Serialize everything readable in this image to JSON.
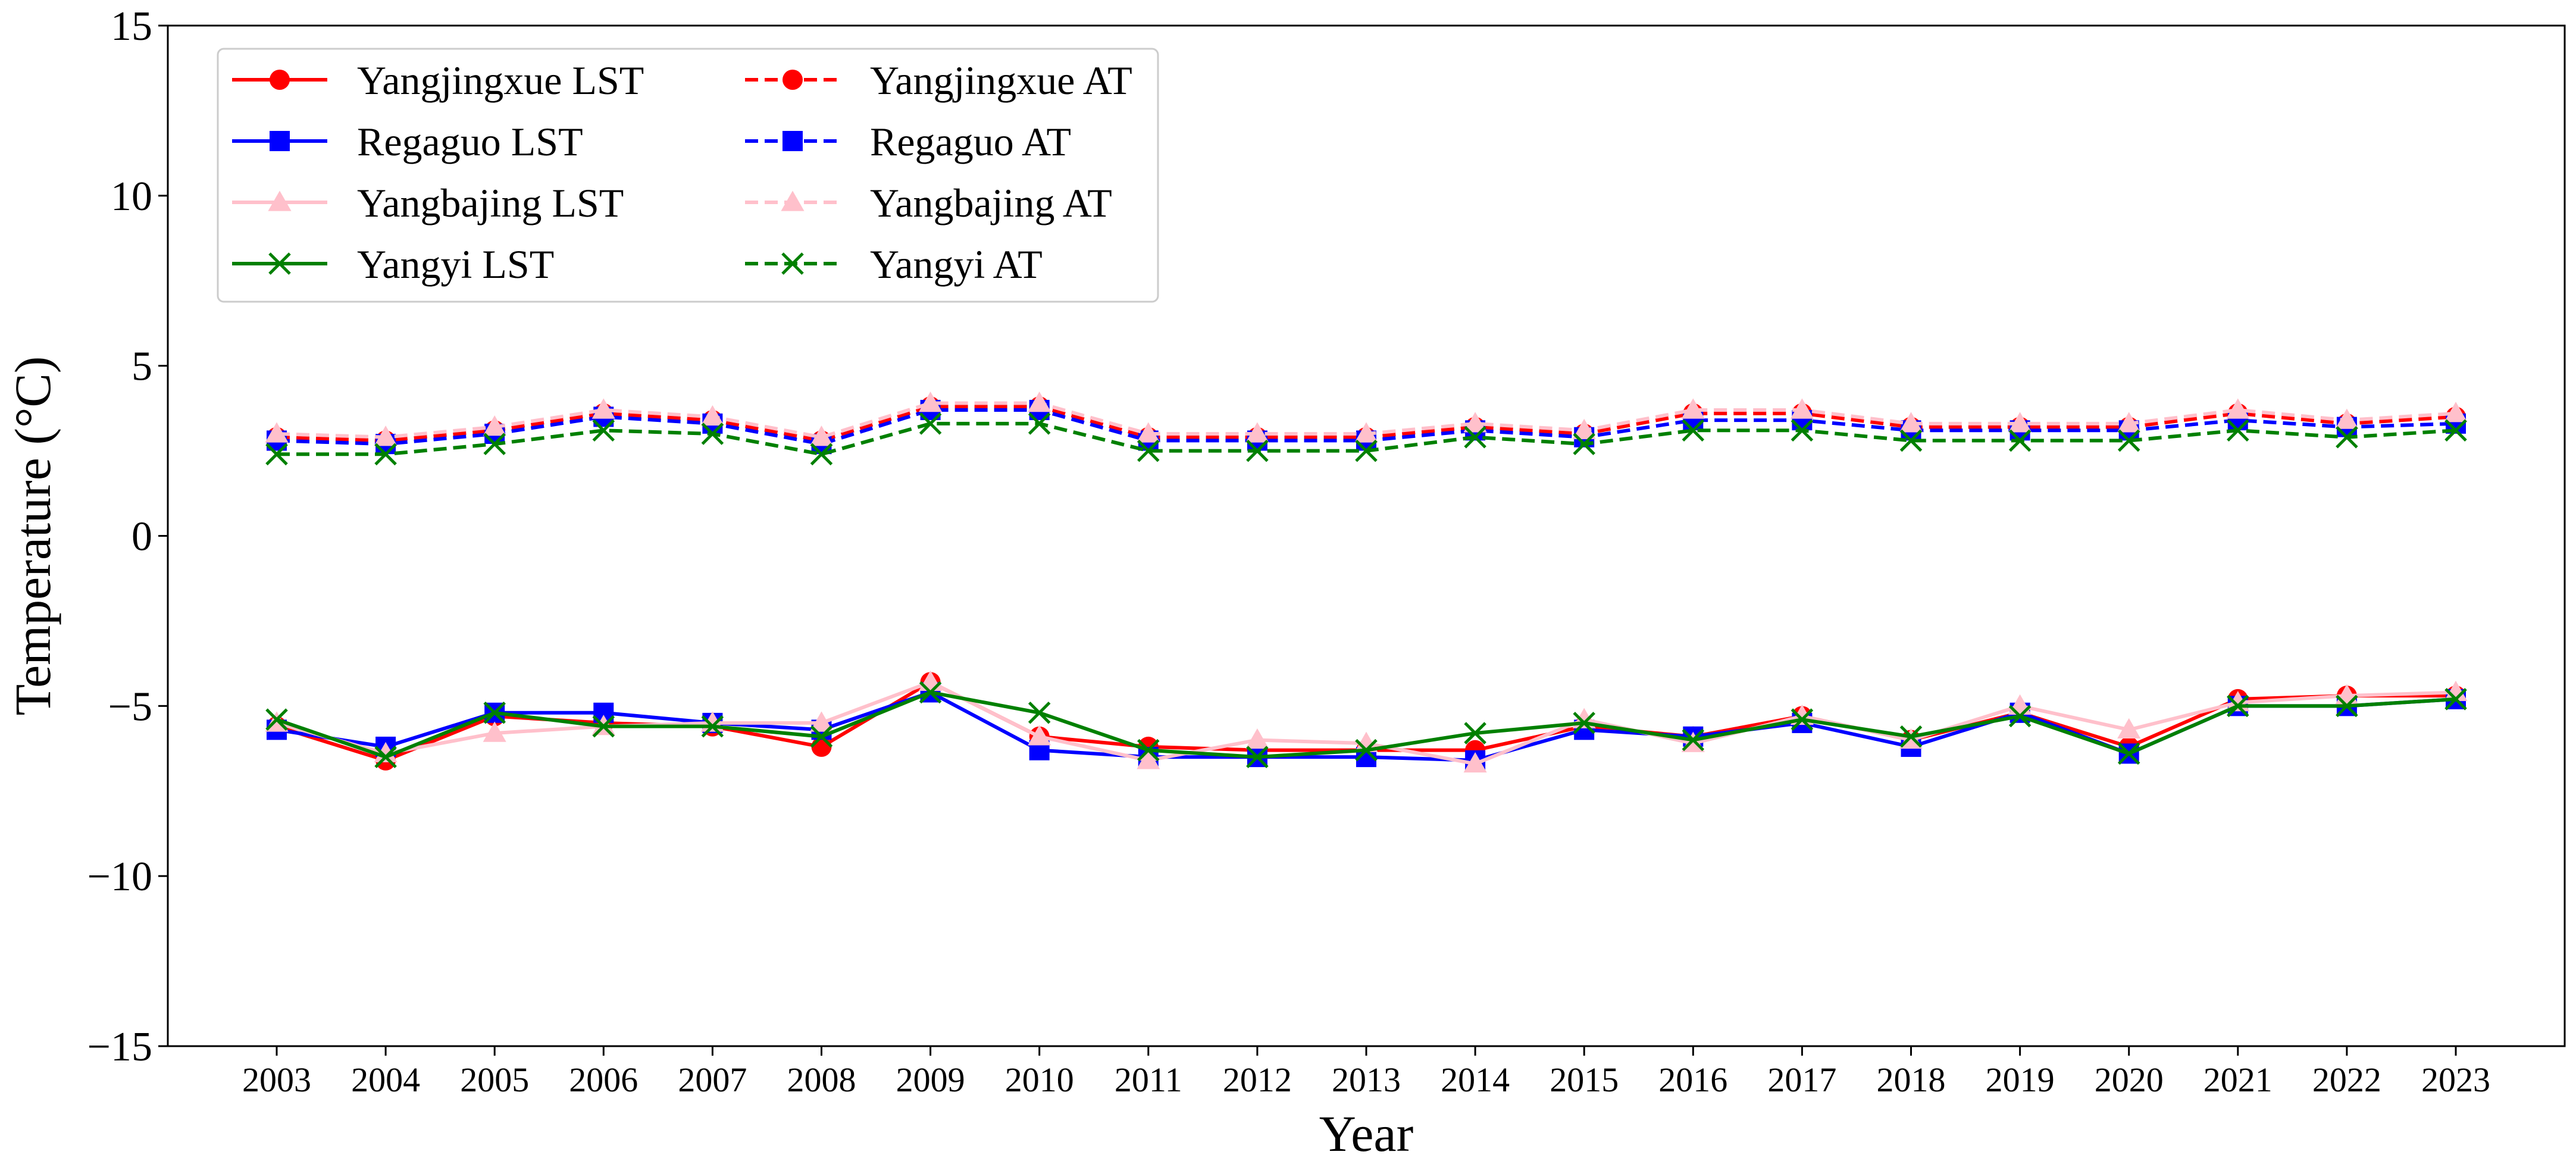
{
  "chart_data": {
    "type": "line",
    "title": "",
    "xlabel": "Year",
    "ylabel": "Temperature (°C)",
    "ylim": [
      -15,
      15
    ],
    "yticks": [
      -15,
      -10,
      -5,
      0,
      5,
      10,
      15
    ],
    "ytick_labels": [
      "−15",
      "−10",
      "−5",
      "0",
      "5",
      "10",
      "15"
    ],
    "x": [
      "2003",
      "2004",
      "2005",
      "2006",
      "2007",
      "2008",
      "2009",
      "2010",
      "2011",
      "2012",
      "2013",
      "2014",
      "2015",
      "2016",
      "2017",
      "2018",
      "2019",
      "2020",
      "2021",
      "2022",
      "2023"
    ],
    "grid": false,
    "legend_position": "top-left",
    "legend_columns": 2,
    "series": [
      {
        "name": "Yangjingxue LST",
        "color": "#ff0000",
        "dash": "solid",
        "marker": "circle",
        "values": [
          -5.6,
          -6.6,
          -5.3,
          -5.5,
          -5.6,
          -6.2,
          -4.3,
          -5.9,
          -6.2,
          -6.3,
          -6.3,
          -6.3,
          -5.6,
          -5.9,
          -5.3,
          -6.0,
          -5.2,
          -6.2,
          -4.8,
          -4.7,
          -4.7
        ]
      },
      {
        "name": "Regaguo LST",
        "color": "#0000ff",
        "dash": "solid",
        "marker": "square",
        "values": [
          -5.7,
          -6.2,
          -5.2,
          -5.2,
          -5.5,
          -5.7,
          -4.6,
          -6.3,
          -6.5,
          -6.5,
          -6.5,
          -6.6,
          -5.7,
          -5.9,
          -5.5,
          -6.2,
          -5.2,
          -6.4,
          -5.0,
          -5.0,
          -4.8
        ]
      },
      {
        "name": "Yangbajing LST",
        "color": "#ffc0cb",
        "dash": "solid",
        "marker": "triangle",
        "values": [
          -5.5,
          -6.4,
          -5.8,
          -5.6,
          -5.5,
          -5.5,
          -4.3,
          -5.9,
          -6.6,
          -6.0,
          -6.1,
          -6.7,
          -5.4,
          -6.1,
          -5.3,
          -6.0,
          -5.0,
          -5.7,
          -4.9,
          -4.7,
          -4.6
        ]
      },
      {
        "name": "Yangyi LST",
        "color": "#008000",
        "dash": "solid",
        "marker": "x",
        "values": [
          -5.4,
          -6.5,
          -5.2,
          -5.6,
          -5.6,
          -5.9,
          -4.6,
          -5.2,
          -6.3,
          -6.5,
          -6.3,
          -5.8,
          -5.5,
          -6.0,
          -5.4,
          -5.9,
          -5.3,
          -6.4,
          -5.0,
          -5.0,
          -4.8
        ]
      },
      {
        "name": "Yangjingxue AT",
        "color": "#ff0000",
        "dash": "dashed",
        "marker": "circle",
        "values": [
          2.9,
          2.8,
          3.1,
          3.6,
          3.4,
          2.8,
          3.8,
          3.8,
          2.9,
          2.9,
          2.9,
          3.2,
          3.0,
          3.6,
          3.6,
          3.2,
          3.2,
          3.2,
          3.6,
          3.3,
          3.5
        ]
      },
      {
        "name": "Regaguo AT",
        "color": "#0000ff",
        "dash": "dashed",
        "marker": "square",
        "values": [
          2.8,
          2.7,
          3.0,
          3.5,
          3.3,
          2.7,
          3.7,
          3.7,
          2.8,
          2.8,
          2.8,
          3.1,
          2.9,
          3.4,
          3.4,
          3.1,
          3.1,
          3.1,
          3.4,
          3.2,
          3.3
        ]
      },
      {
        "name": "Yangbajing AT",
        "color": "#ffc0cb",
        "dash": "dashed",
        "marker": "triangle",
        "values": [
          3.0,
          2.9,
          3.2,
          3.7,
          3.5,
          2.9,
          3.9,
          3.9,
          3.0,
          3.0,
          3.0,
          3.3,
          3.1,
          3.7,
          3.7,
          3.3,
          3.3,
          3.3,
          3.7,
          3.4,
          3.6
        ]
      },
      {
        "name": "Yangyi AT",
        "color": "#008000",
        "dash": "dashed",
        "marker": "x",
        "values": [
          2.4,
          2.4,
          2.7,
          3.1,
          3.0,
          2.4,
          3.3,
          3.3,
          2.5,
          2.5,
          2.5,
          2.9,
          2.7,
          3.1,
          3.1,
          2.8,
          2.8,
          2.8,
          3.1,
          2.9,
          3.1
        ]
      }
    ]
  }
}
